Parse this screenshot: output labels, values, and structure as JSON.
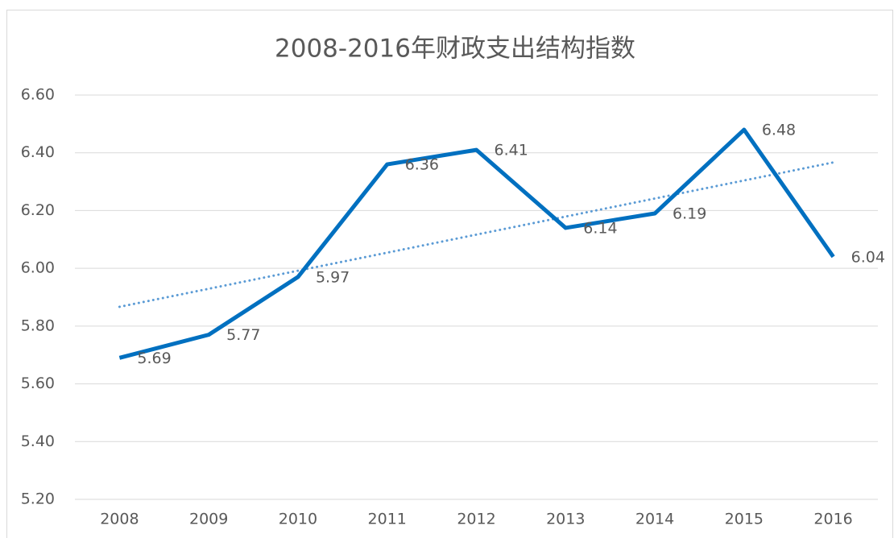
{
  "chart_data": {
    "type": "line",
    "title": "2008-2016年财政支出结构指数",
    "categories": [
      "2008",
      "2009",
      "2010",
      "2011",
      "2012",
      "2013",
      "2014",
      "2015",
      "2016"
    ],
    "series": [
      {
        "color": "#0070c0",
        "values": [
          5.69,
          5.77,
          5.97,
          6.36,
          6.41,
          6.14,
          6.19,
          6.48,
          6.04
        ]
      }
    ],
    "trendline": {
      "type": "linear",
      "color": "#5b9bd5"
    },
    "ylim": [
      5.2,
      6.6
    ],
    "yticks": [
      {
        "value": 5.2,
        "label": "5.20"
      },
      {
        "value": 5.4,
        "label": "5.40"
      },
      {
        "value": 5.6,
        "label": "5.60"
      },
      {
        "value": 5.8,
        "label": "5.80"
      },
      {
        "value": 6.0,
        "label": "6.00"
      },
      {
        "value": 6.2,
        "label": "6.20"
      },
      {
        "value": 6.4,
        "label": "6.40"
      },
      {
        "value": 6.6,
        "label": "6.60"
      }
    ],
    "grid": true
  }
}
